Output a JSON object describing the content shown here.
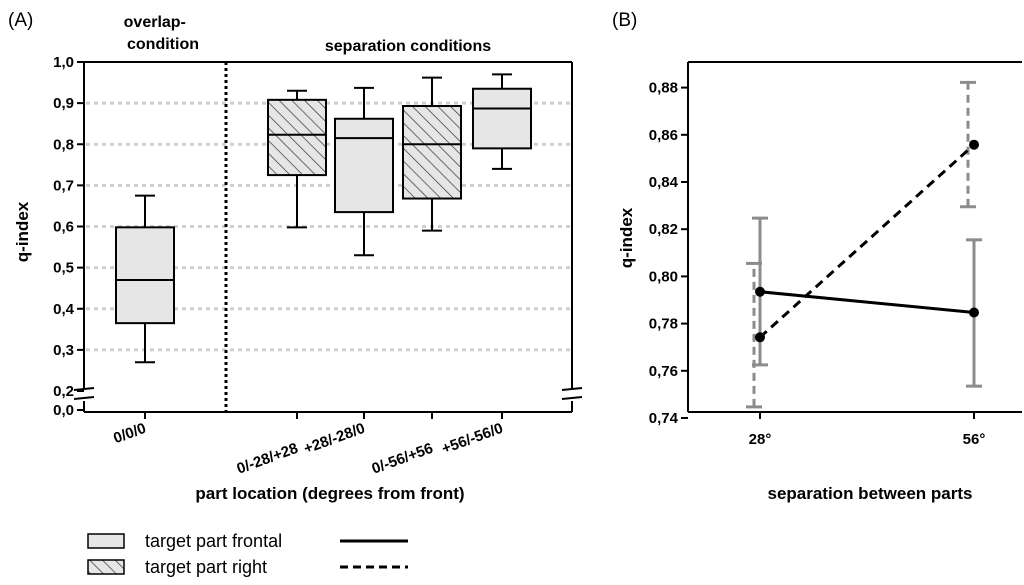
{
  "chart_data": [
    {
      "type": "box",
      "panel_label": "(A)",
      "section_labels": [
        "overlap-\ncondition",
        "separation conditions"
      ],
      "xlabel": "part location (degrees from front)",
      "ylabel": "q-index",
      "categories": [
        "0/0/0",
        "0/-28/+28",
        "+28/-28/0",
        "0/-56/+56",
        "+56/-56/0"
      ],
      "boxes": [
        {
          "category": "0/0/0",
          "series": "target part frontal",
          "min": 0.27,
          "q1": 0.365,
          "median": 0.47,
          "q3": 0.598,
          "max": 0.675
        },
        {
          "category": "0/-28/+28",
          "series": "target part right",
          "min": 0.598,
          "q1": 0.725,
          "median": 0.823,
          "q3": 0.908,
          "max": 0.93
        },
        {
          "category": "+28/-28/0",
          "series": "target part frontal",
          "min": 0.53,
          "q1": 0.635,
          "median": 0.815,
          "q3": 0.862,
          "max": 0.937
        },
        {
          "category": "0/-56/+56",
          "series": "target part right",
          "min": 0.59,
          "q1": 0.668,
          "median": 0.8,
          "q3": 0.893,
          "max": 0.962
        },
        {
          "category": "+56/-56/0",
          "series": "target part frontal",
          "min": 0.74,
          "q1": 0.79,
          "median": 0.887,
          "q3": 0.935,
          "max": 0.97
        }
      ],
      "yticks": [
        "1,0",
        "0,9",
        "0,8",
        "0,7",
        "0,6",
        "0,5",
        "0,4",
        "0,3",
        "0,2",
        "0,0"
      ],
      "ylim": [
        0.2,
        1.0
      ],
      "axis_break": true,
      "grid": "horizontal dotted",
      "legend": [
        {
          "label": "target part frontal",
          "fill": "plain",
          "line": "solid"
        },
        {
          "label": "target part right",
          "fill": "hatched",
          "line": "dashed"
        }
      ],
      "colors": {
        "box_fill": "#e6e6e6",
        "grid": "#d0d0d0",
        "line": "#000000"
      }
    },
    {
      "type": "line",
      "panel_label": "(B)",
      "xlabel": "separation between parts",
      "ylabel": "q-index",
      "categories": [
        "28°",
        "56°"
      ],
      "ylim": [
        0.74,
        0.89
      ],
      "yticks": [
        "0,88",
        "0,86",
        "0,84",
        "0,82",
        "0,80",
        "0,78",
        "0,76",
        "0,74"
      ],
      "series": [
        {
          "name": "target part frontal",
          "style": "solid",
          "values": [
            0.7935,
            0.7847
          ],
          "error_low": [
            0.7625,
            0.7535
          ],
          "error_high": [
            0.8247,
            0.8155
          ]
        },
        {
          "name": "target part right",
          "style": "dashed",
          "values": [
            0.7742,
            0.8558
          ],
          "error_low": [
            0.7447,
            0.8295
          ],
          "error_high": [
            0.8055,
            0.8822
          ]
        }
      ],
      "colors": {
        "line": "#000000",
        "error_bar": "#8c8c8c"
      }
    }
  ]
}
